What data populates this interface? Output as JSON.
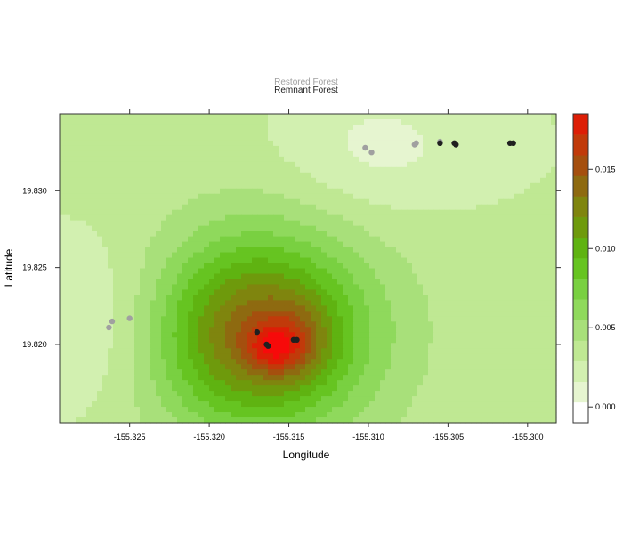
{
  "chart_data": {
    "type": "heatmap",
    "title": "",
    "legend_entries": [
      {
        "label": "Restored Forest",
        "color": "#a0a0a0"
      },
      {
        "label": "Remnant Forest",
        "color": "#202020"
      }
    ],
    "xlabel": "Longitude",
    "ylabel": "Latitude",
    "xlim": [
      -155.3294,
      -155.2982
    ],
    "ylim": [
      19.8149,
      19.835
    ],
    "x_ticks": [
      {
        "value": -155.325,
        "label": "-155.325"
      },
      {
        "value": -155.32,
        "label": "-155.320"
      },
      {
        "value": -155.315,
        "label": "-155.315"
      },
      {
        "value": -155.31,
        "label": "-155.310"
      },
      {
        "value": -155.305,
        "label": "-155.305"
      },
      {
        "value": -155.3,
        "label": "-155.300"
      }
    ],
    "y_ticks": [
      {
        "value": 19.82,
        "label": "19.820"
      },
      {
        "value": 19.825,
        "label": "19.825"
      },
      {
        "value": 19.83,
        "label": "19.830"
      }
    ],
    "colorkey": {
      "range": [
        -0.001,
        0.0185
      ],
      "breaks": [
        -0.001,
        0.0003,
        0.0016,
        0.0029,
        0.0042,
        0.0055,
        0.0068,
        0.0081,
        0.0094,
        0.0107,
        0.012,
        0.0133,
        0.0146,
        0.0159,
        0.0172,
        0.0185
      ],
      "colors": [
        "#ffffff",
        "#e6f5d0",
        "#d2f0b0",
        "#bfe893",
        "#a8e07a",
        "#8fd95c",
        "#79d041",
        "#66c421",
        "#5fb311",
        "#6e9a0c",
        "#7f850e",
        "#8e6a10",
        "#a54f0e",
        "#c13a0a",
        "#dd1e06",
        "#f70a0a"
      ],
      "ticks": [
        {
          "value": 0.0,
          "label": "0.000"
        },
        {
          "value": 0.005,
          "label": "0.005"
        },
        {
          "value": 0.01,
          "label": "0.010"
        },
        {
          "value": 0.015,
          "label": "0.015"
        }
      ]
    },
    "background_value": 0.0032,
    "surface_peaks": [
      {
        "x": -155.3173,
        "y": 19.8208,
        "amplitude": 0.0105,
        "sx": 0.0045,
        "sy": 0.0042
      },
      {
        "x": -155.316,
        "y": 19.8198,
        "amplitude": 0.004,
        "sx": 0.0012,
        "sy": 0.0011
      },
      {
        "x": -155.3145,
        "y": 19.8202,
        "amplitude": 0.0028,
        "sx": 0.0015,
        "sy": 0.0018
      },
      {
        "x": -155.315,
        "y": 19.8205,
        "amplitude": 0.0014,
        "sx": 0.0065,
        "sy": 0.006
      },
      {
        "x": -155.3265,
        "y": 19.8213,
        "amplitude": -0.0022,
        "sx": 0.006,
        "sy": 0.004
      },
      {
        "x": -155.31,
        "y": 19.8328,
        "amplitude": -0.0017,
        "sx": 0.004,
        "sy": 0.003
      },
      {
        "x": -155.304,
        "y": 19.833,
        "amplitude": -0.0006,
        "sx": 0.005,
        "sy": 0.003
      }
    ],
    "series": [
      {
        "name": "Restored Forest",
        "color": "#a0a0a0",
        "points": [
          {
            "x": -155.3263,
            "y": 19.8211
          },
          {
            "x": -155.3261,
            "y": 19.8215
          },
          {
            "x": -155.325,
            "y": 19.8217
          },
          {
            "x": -155.3102,
            "y": 19.8328
          },
          {
            "x": -155.3098,
            "y": 19.8325
          },
          {
            "x": -155.3071,
            "y": 19.833
          },
          {
            "x": -155.307,
            "y": 19.8331
          },
          {
            "x": -155.3055,
            "y": 19.8332
          }
        ]
      },
      {
        "name": "Remnant Forest",
        "color": "#202020",
        "points": [
          {
            "x": -155.317,
            "y": 19.8208
          },
          {
            "x": -155.3164,
            "y": 19.82
          },
          {
            "x": -155.3163,
            "y": 19.8199
          },
          {
            "x": -155.3147,
            "y": 19.8203
          },
          {
            "x": -155.3145,
            "y": 19.8203
          },
          {
            "x": -155.3055,
            "y": 19.8331
          },
          {
            "x": -155.3046,
            "y": 19.8331
          },
          {
            "x": -155.3045,
            "y": 19.833
          },
          {
            "x": -155.3011,
            "y": 19.8331
          },
          {
            "x": -155.3009,
            "y": 19.8331
          }
        ]
      }
    ]
  }
}
